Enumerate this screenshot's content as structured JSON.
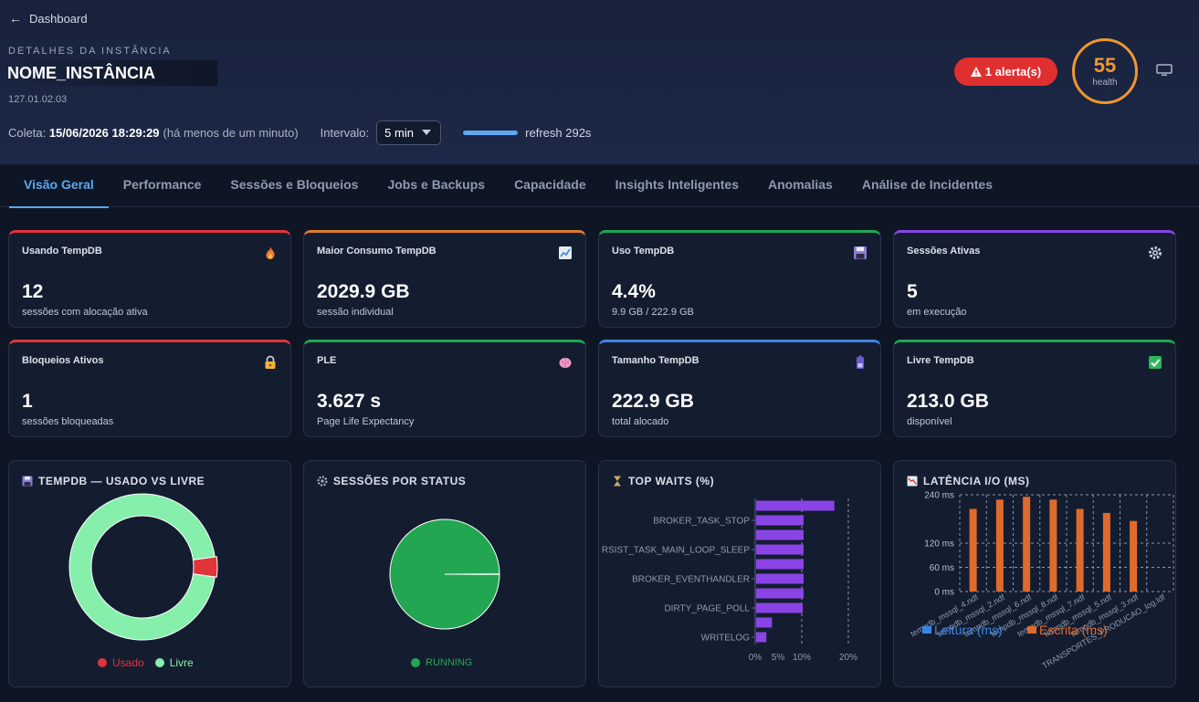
{
  "header": {
    "back_label": "Dashboard",
    "eyebrow": "DETALHES DA INSTÂNCIA",
    "instance_name": "NOME_INSTÂNCIA",
    "ip": "127.01.02.03",
    "collect_label": "Coleta:",
    "collect_time": "15/06/2026 18:29:29",
    "collect_relative": "(há menos de um minuto)",
    "interval_label": "Intervalo:",
    "interval_value": "5 min",
    "refresh_progress": 1.0,
    "refresh_text": "refresh 292s",
    "alert_label": "1 alerta(s)",
    "health_value": "55",
    "health_label": "health",
    "colors": {
      "alert": "#e02f2f",
      "health": "#f0962f",
      "accent": "#5aa8f0"
    }
  },
  "tabs": [
    {
      "label": "Visão Geral",
      "active": true
    },
    {
      "label": "Performance"
    },
    {
      "label": "Sessões e Bloqueios"
    },
    {
      "label": "Jobs e Backups"
    },
    {
      "label": "Capacidade"
    },
    {
      "label": "Insights Inteligentes"
    },
    {
      "label": "Anomalias"
    },
    {
      "label": "Análise de Incidentes"
    }
  ],
  "kpis": [
    {
      "title": "Usando TempDB",
      "value": "12",
      "sub": "sessões com alocação ativa",
      "color": "#e0343a",
      "icon": "fire-icon"
    },
    {
      "title": "Maior Consumo TempDB",
      "value": "2029.9 GB",
      "sub": "sessão individual",
      "color": "#e07b2c",
      "icon": "chart-up-icon"
    },
    {
      "title": "Uso TempDB",
      "value": "4.4%",
      "sub": "9.9 GB / 222.9 GB",
      "color": "#22a652",
      "icon": "floppy-icon"
    },
    {
      "title": "Sessões Ativas",
      "value": "5",
      "sub": "em execução",
      "color": "#8a44e6",
      "icon": "gear-icon"
    },
    {
      "title": "Bloqueios Ativos",
      "value": "1",
      "sub": "sessões bloqueadas",
      "color": "#e0343a",
      "icon": "lock-icon"
    },
    {
      "title": "PLE",
      "value": "3.627 s",
      "sub": "Page Life Expectancy",
      "color": "#22a652",
      "icon": "brain-icon"
    },
    {
      "title": "Tamanho TempDB",
      "value": "222.9 GB",
      "sub": "total alocado",
      "color": "#3b86e6",
      "icon": "battery-icon"
    },
    {
      "title": "Livre TempDB",
      "value": "213.0 GB",
      "sub": "disponível",
      "color": "#22a652",
      "icon": "check-icon"
    }
  ],
  "panels": {
    "tempdb": {
      "title": "TEMPDB — USADO VS LIVRE",
      "icon": "floppy-icon"
    },
    "sessions": {
      "title": "SESSÕES POR STATUS",
      "icon": "gear-icon"
    },
    "waits": {
      "title": "TOP WAITS (%)",
      "icon": "hourglass-icon"
    },
    "latency": {
      "title": "LATÊNCIA I/O (MS)",
      "icon": "chart-down-icon"
    }
  },
  "chart_data": [
    {
      "type": "pie",
      "donut": true,
      "title": "TEMPDB — USADO VS LIVRE",
      "categories": [
        "Usado",
        "Livre"
      ],
      "values": [
        4.4,
        95.6
      ],
      "colors": [
        "#e0343a",
        "#86efac"
      ],
      "legend": "bottom"
    },
    {
      "type": "pie",
      "title": "SESSÕES POR STATUS",
      "categories": [
        "RUNNING"
      ],
      "values": [
        99.8
      ],
      "colors": [
        "#22a652"
      ],
      "legend": "bottom"
    },
    {
      "type": "bar",
      "orientation": "horizontal",
      "title": "TOP WAITS (%)",
      "categories": [
        "",
        "BROKER_TASK_STOP",
        "",
        "RSIST_TASK_MAIN_LOOP_SLEEP",
        "",
        "BROKER_EVENTHANDLER",
        "",
        "DIRTY_PAGE_POLL",
        "",
        "WRITELOG"
      ],
      "values": [
        16.8,
        10.2,
        10.2,
        10.2,
        10.2,
        10.2,
        10.2,
        10.0,
        3.4,
        2.2
      ],
      "xticks": [
        "0%",
        "5%",
        "10%",
        "20%"
      ],
      "xlim": [
        0,
        20
      ],
      "color": "#8a44e6",
      "grid": true
    },
    {
      "type": "bar",
      "title": "LATÊNCIA I/O (MS)",
      "categories": [
        "tempdb_mssql_4.ndf",
        "tempdb_mssql_2.ndf",
        "tempdb_mssql_6.ndf",
        "tempdb_mssql_8.ndf",
        "tempdb_mssql_7.ndf",
        "tempdb_mssql_5.ndf",
        "tempdb_mssql_3.ndf",
        "TRANSPORTES_PRODUCAO_log.ldf"
      ],
      "series": [
        {
          "name": "Leitura (ms)",
          "values": [
            0,
            0,
            0,
            0,
            0,
            0,
            0,
            0
          ],
          "color": "#3b86e6"
        },
        {
          "name": "Escrita (ms)",
          "values": [
            205,
            228,
            235,
            228,
            205,
            195,
            175,
            0
          ],
          "color": "#e06a2c"
        }
      ],
      "yticks": [
        "0 ms",
        "60 ms",
        "120 ms",
        "240 ms"
      ],
      "ylim": [
        0,
        240
      ],
      "legend": "bottom",
      "grid": true
    }
  ]
}
